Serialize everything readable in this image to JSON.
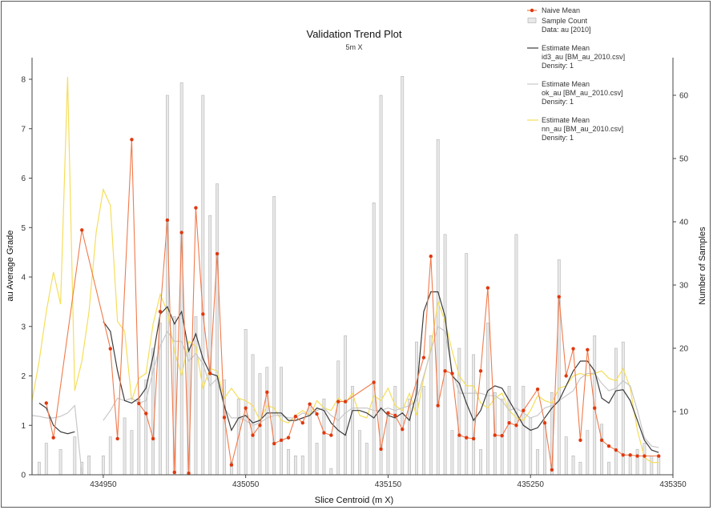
{
  "chart_data": {
    "type": "line",
    "title": "Validation Trend Plot",
    "subtitle": "5m X",
    "xlabel": "Slice Centroid (m X)",
    "ylabel": "au Average Grade",
    "y2label": "Number of Samples",
    "xlim": [
      434900,
      435350
    ],
    "ylim": [
      0,
      8.5
    ],
    "y2lim": [
      0,
      66
    ],
    "x_ticks": [
      434950,
      435050,
      435150,
      435250,
      435350
    ],
    "x_tick_labels": [
      "434950",
      "435050",
      "435150",
      "435250",
      "435350"
    ],
    "y_ticks": [
      0,
      1,
      2,
      3,
      4,
      5,
      6,
      7,
      8
    ],
    "y2_ticks": [
      10,
      20,
      30,
      40,
      50,
      60
    ],
    "colors": {
      "naive": "#f07a4c",
      "naive_point": "#e0380e",
      "bar_fill": "#e8e8e8",
      "bar_stroke": "#b4b4b4",
      "id3": "#3c3c3c",
      "ok": "#c8c8c8",
      "nn": "#f5de5a"
    },
    "legend": [
      {
        "key": "naive",
        "label": "Naive Mean",
        "style": "line-point",
        "lines": [
          "Naive Mean"
        ]
      },
      {
        "key": "count",
        "label": "Sample Count",
        "style": "bar",
        "lines": [
          "Sample Count",
          "Data: au [2010]"
        ]
      },
      {
        "key": "id3",
        "label": "Estimate Mean",
        "style": "line",
        "lines": [
          "Estimate Mean",
          "id3_au [BM_au_2010.csv]",
          "Density: 1"
        ]
      },
      {
        "key": "ok",
        "label": "Estimate Mean",
        "style": "line",
        "lines": [
          "Estimate Mean",
          "ok_au [BM_au_2010.csv]",
          "Density: 1"
        ]
      },
      {
        "key": "nn",
        "label": "Estimate Mean",
        "style": "line",
        "lines": [
          "Estimate Mean",
          "nn_au [BM_au_2010.csv]",
          "Density: 1"
        ]
      }
    ],
    "sample_count": {
      "x": [
        434905,
        434910,
        434920,
        434930,
        434935,
        434940,
        434950,
        434955,
        434965,
        434970,
        434975,
        434980,
        434985,
        434990,
        434995,
        435000,
        435005,
        435010,
        435015,
        435020,
        435025,
        435030,
        435035,
        435040,
        435045,
        435050,
        435055,
        435060,
        435065,
        435070,
        435075,
        435080,
        435085,
        435090,
        435095,
        435100,
        435105,
        435110,
        435115,
        435120,
        435125,
        435130,
        435135,
        435140,
        435145,
        435150,
        435155,
        435160,
        435165,
        435170,
        435175,
        435180,
        435185,
        435190,
        435195,
        435200,
        435205,
        435210,
        435215,
        435220,
        435225,
        435230,
        435235,
        435240,
        435245,
        435250,
        435255,
        435260,
        435265,
        435270,
        435275,
        435280,
        435285,
        435290,
        435295,
        435300,
        435305,
        435310,
        435315,
        435320,
        435325,
        435330,
        435335,
        435340
      ],
      "values": [
        2,
        5,
        4,
        6,
        2,
        3,
        3,
        6,
        9,
        7,
        12,
        15,
        20,
        24,
        60,
        25,
        62,
        20,
        25,
        60,
        41,
        46,
        15,
        2,
        12,
        23,
        19,
        16,
        17,
        44,
        17,
        4,
        3,
        3,
        11,
        5,
        12,
        1,
        18,
        22,
        14,
        7,
        5,
        43,
        60,
        10,
        14,
        63,
        12,
        21,
        14,
        22,
        53,
        38,
        7,
        20,
        35,
        19,
        4,
        24,
        13,
        12,
        14,
        38,
        14,
        9,
        4,
        8,
        13,
        34,
        6,
        3,
        2,
        7,
        22,
        8,
        2,
        20,
        21,
        3,
        4,
        5,
        3,
        3
      ]
    },
    "naive_mean": {
      "x": [
        434910,
        434915,
        434935,
        434955,
        434960,
        434970,
        434975,
        434980,
        434985,
        434990,
        434995,
        435000,
        435005,
        435010,
        435015,
        435020,
        435025,
        435030,
        435035,
        435040,
        435050,
        435055,
        435060,
        435065,
        435070,
        435075,
        435080,
        435085,
        435090,
        435095,
        435100,
        435105,
        435110,
        435115,
        435120,
        435140,
        435145,
        435150,
        435155,
        435160,
        435175,
        435180,
        435185,
        435190,
        435195,
        435200,
        435205,
        435210,
        435215,
        435220,
        435225,
        435230,
        435235,
        435240,
        435245,
        435255,
        435260,
        435265,
        435270,
        435275,
        435280,
        435285,
        435290,
        435295,
        435300,
        435305,
        435310,
        435315,
        435320,
        435325,
        435330,
        435340
      ],
      "values": [
        1.45,
        0.75,
        4.95,
        2.55,
        0.73,
        6.78,
        1.44,
        1.24,
        0.73,
        3.3,
        5.15,
        0.05,
        4.9,
        0.03,
        5.4,
        3.25,
        2.05,
        4.47,
        1.16,
        0.2,
        1.35,
        0.8,
        1.0,
        1.67,
        0.63,
        0.7,
        0.75,
        1.18,
        1.05,
        1.43,
        1.23,
        0.85,
        0.8,
        1.48,
        1.48,
        1.87,
        0.52,
        1.25,
        1.2,
        0.92,
        2.37,
        4.42,
        1.4,
        2.1,
        2.05,
        0.8,
        0.75,
        0.73,
        2.1,
        3.78,
        0.8,
        0.79,
        1.05,
        1.0,
        1.3,
        1.73,
        1.05,
        0.1,
        3.6,
        2.0,
        2.55,
        0.7,
        2.53,
        1.35,
        0.7,
        0.58,
        0.5,
        0.4,
        0.4,
        0.38,
        0.38,
        0.38
      ]
    },
    "id3_au": {
      "x": [
        434900,
        434905,
        434910,
        434915,
        434920,
        434925,
        434930,
        434935,
        434940,
        434950,
        434955,
        434960,
        434965,
        434970,
        434975,
        434980,
        434985,
        434990,
        434995,
        435000,
        435005,
        435010,
        435015,
        435020,
        435025,
        435030,
        435035,
        435040,
        435045,
        435050,
        435055,
        435060,
        435065,
        435070,
        435075,
        435080,
        435085,
        435090,
        435095,
        435100,
        435105,
        435110,
        435115,
        435120,
        435125,
        435130,
        435135,
        435140,
        435145,
        435150,
        435155,
        435160,
        435165,
        435170,
        435175,
        435180,
        435185,
        435190,
        435195,
        435200,
        435205,
        435210,
        435215,
        435220,
        435225,
        435230,
        435235,
        435240,
        435245,
        435250,
        435255,
        435260,
        435265,
        435270,
        435275,
        435280,
        435285,
        435290,
        435295,
        435300,
        435305,
        435310,
        435315,
        435320,
        435325,
        435330,
        435335,
        435340
      ],
      "values": [
        null,
        1.45,
        1.35,
        1.0,
        0.87,
        0.83,
        0.87,
        null,
        null,
        3.1,
        2.9,
        2.1,
        1.5,
        1.45,
        1.55,
        1.75,
        2.4,
        3.25,
        3.4,
        3.05,
        3.3,
        2.5,
        2.85,
        2.35,
        2.05,
        2.0,
        1.4,
        0.9,
        1.15,
        1.2,
        1.05,
        1.1,
        1.25,
        1.25,
        1.25,
        1.1,
        1.1,
        1.15,
        1.2,
        1.35,
        1.3,
        1.05,
        0.9,
        0.8,
        1.3,
        1.3,
        1.25,
        1.15,
        1.35,
        1.2,
        1.15,
        1.25,
        1.1,
        1.65,
        3.3,
        3.7,
        3.7,
        3.2,
        2.0,
        1.85,
        1.45,
        1.1,
        1.3,
        1.7,
        1.8,
        1.75,
        1.5,
        1.25,
        1.0,
        0.9,
        0.95,
        1.15,
        1.35,
        1.5,
        1.8,
        2.1,
        2.3,
        2.3,
        2.1,
        1.55,
        1.45,
        1.7,
        1.72,
        1.5,
        1.1,
        0.7,
        0.5,
        0.45
      ]
    },
    "ok_au": {
      "x": [
        434900,
        434905,
        434910,
        434915,
        434920,
        434925,
        434930,
        434935,
        434940,
        434950,
        434955,
        434960,
        434965,
        434970,
        434975,
        434980,
        434985,
        434990,
        434995,
        435000,
        435005,
        435010,
        435015,
        435020,
        435025,
        435030,
        435035,
        435040,
        435045,
        435050,
        435055,
        435060,
        435065,
        435070,
        435075,
        435080,
        435085,
        435090,
        435095,
        435100,
        435105,
        435110,
        435115,
        435120,
        435125,
        435130,
        435135,
        435140,
        435145,
        435150,
        435155,
        435160,
        435165,
        435170,
        435175,
        435180,
        435185,
        435190,
        435195,
        435200,
        435205,
        435210,
        435215,
        435220,
        435225,
        435230,
        435235,
        435240,
        435245,
        435250,
        435255,
        435260,
        435265,
        435270,
        435275,
        435280,
        435285,
        435290,
        435295,
        435300,
        435305,
        435310,
        435315,
        435320,
        435325,
        435330,
        435335,
        435340
      ],
      "values": [
        1.2,
        1.18,
        1.15,
        1.15,
        1.18,
        1.25,
        1.4,
        0.02,
        null,
        1.1,
        1.3,
        1.55,
        1.5,
        1.55,
        1.45,
        1.5,
        2.1,
        2.6,
        2.9,
        2.7,
        2.7,
        2.3,
        2.45,
        2.25,
        1.8,
        1.95,
        1.35,
        1.15,
        1.15,
        1.1,
        1.0,
        1.05,
        1.15,
        1.2,
        1.2,
        1.15,
        1.15,
        1.25,
        1.2,
        1.3,
        1.35,
        1.2,
        1.1,
        1.25,
        1.35,
        1.35,
        1.35,
        1.3,
        1.3,
        1.35,
        1.3,
        1.35,
        1.4,
        1.5,
        2.0,
        2.5,
        3.0,
        2.9,
        2.1,
        1.65,
        1.65,
        1.65,
        1.65,
        1.6,
        1.6,
        1.5,
        1.3,
        1.35,
        1.25,
        1.15,
        1.2,
        1.35,
        1.4,
        1.5,
        1.6,
        1.7,
        1.95,
        2.05,
        2.05,
        1.85,
        1.7,
        1.75,
        1.9,
        1.8,
        1.3,
        0.75,
        0.58,
        0.55
      ]
    },
    "nn_au": {
      "x": [
        434900,
        434905,
        434910,
        434915,
        434920,
        434925,
        434930,
        434935,
        434940,
        434945,
        434950,
        434955,
        434960,
        434965,
        434970,
        434975,
        434980,
        434985,
        434990,
        434995,
        435000,
        435005,
        435010,
        435015,
        435020,
        435025,
        435030,
        435035,
        435040,
        435045,
        435050,
        435055,
        435060,
        435065,
        435070,
        435075,
        435080,
        435085,
        435090,
        435095,
        435100,
        435105,
        435110,
        435115,
        435120,
        435125,
        435130,
        435135,
        435140,
        435145,
        435150,
        435155,
        435160,
        435165,
        435170,
        435175,
        435180,
        435185,
        435190,
        435195,
        435200,
        435205,
        435210,
        435215,
        435220,
        435225,
        435230,
        435235,
        435240,
        435245,
        435250,
        435255,
        435260,
        435265,
        435270,
        435275,
        435280,
        435285,
        435290,
        435295,
        435300,
        435305,
        435310,
        435315,
        435320,
        435325,
        435330,
        435335,
        435340
      ],
      "values": [
        1.5,
        2.3,
        3.3,
        4.1,
        3.45,
        8.05,
        1.7,
        2.3,
        3.3,
        4.9,
        5.77,
        5.45,
        3.1,
        2.9,
        1.5,
        1.95,
        2.05,
        3.05,
        3.65,
        3.3,
        2.5,
        2.0,
        2.7,
        2.6,
        1.75,
        2.15,
        2.1,
        1.55,
        1.75,
        1.55,
        1.5,
        1.4,
        1.1,
        1.4,
        1.35,
        1.1,
        1.05,
        1.2,
        1.3,
        1.2,
        1.5,
        1.35,
        1.3,
        1.55,
        1.45,
        1.65,
        1.2,
        1.15,
        1.6,
        1.5,
        1.75,
        1.4,
        1.3,
        1.65,
        1.2,
        1.95,
        2.55,
        3.5,
        3.1,
        2.5,
        2.0,
        1.8,
        1.8,
        1.45,
        1.35,
        1.55,
        1.65,
        1.3,
        1.15,
        1.1,
        1.3,
        1.6,
        1.5,
        1.45,
        1.75,
        1.8,
        2.0,
        2.05,
        2.0,
        2.05,
        2.1,
        1.95,
        1.9,
        2.15,
        1.75,
        0.9,
        0.35,
        0.25,
        0.25
      ]
    }
  }
}
